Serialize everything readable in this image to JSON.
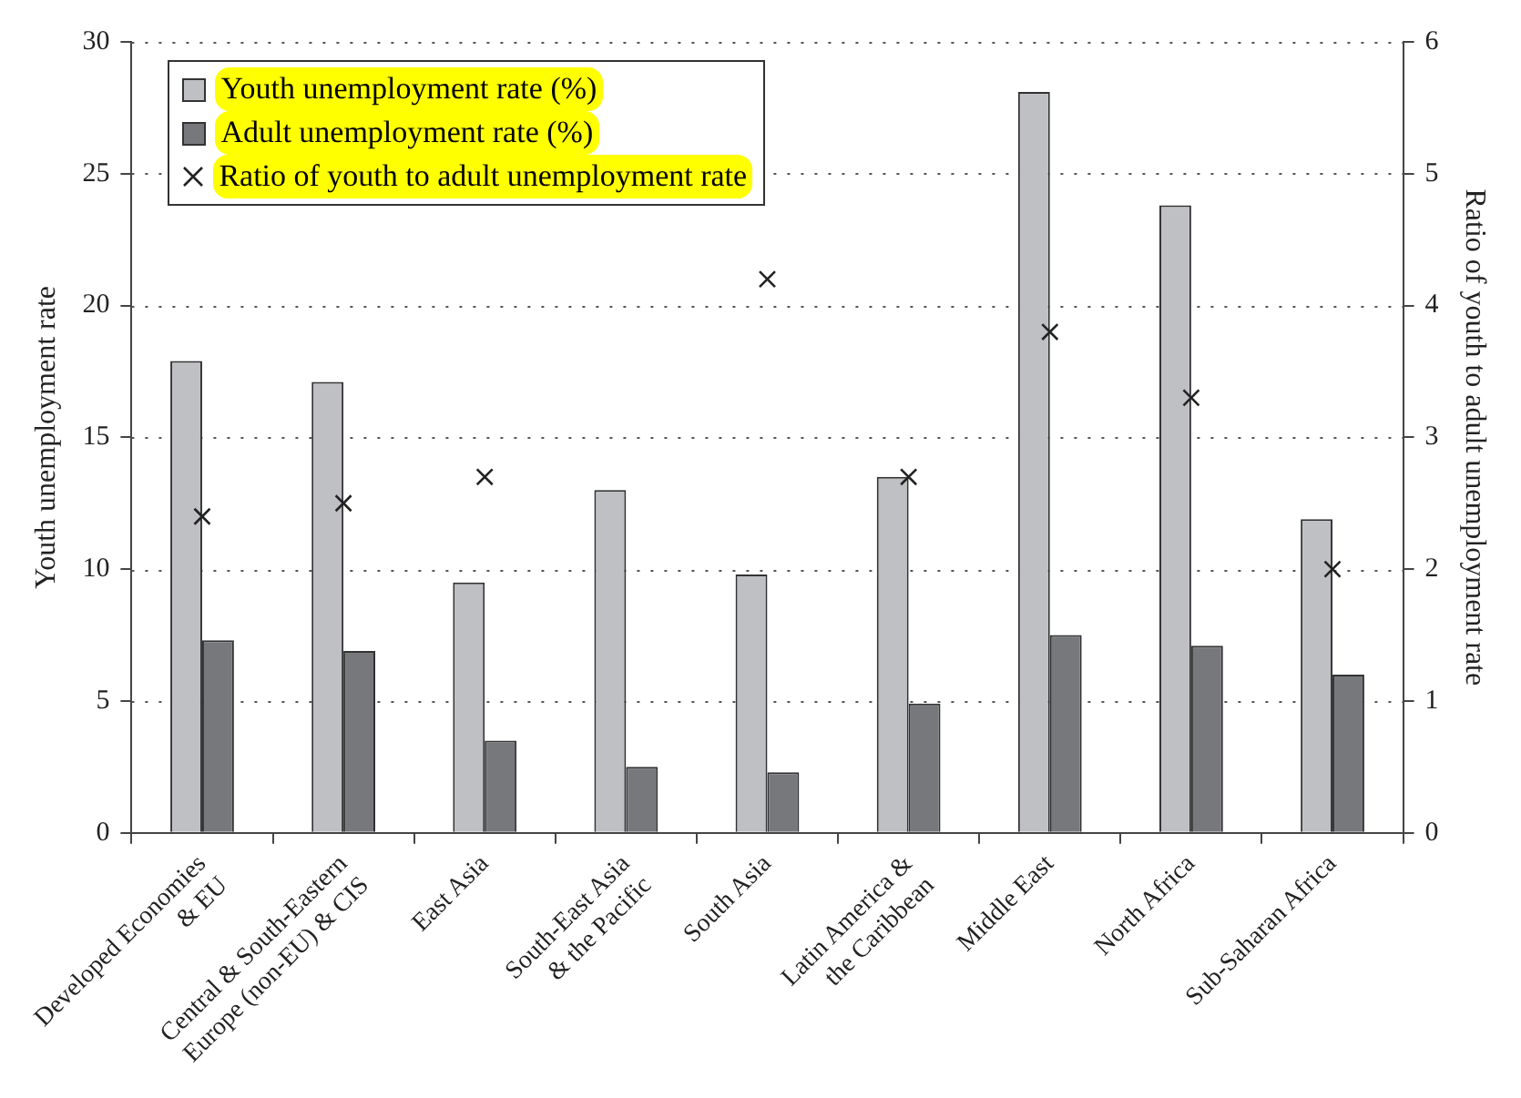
{
  "chart_data": {
    "type": "bar",
    "ylabel": "Youth unemployment rate",
    "y2label": "Ratio of youth to adult unemployment rate",
    "categories": [
      "Developed Economies & EU",
      "Central & South-Eastern Europe (non-EU) & CIS",
      "East Asia",
      "South-East Asia & the Pacific",
      "South Asia",
      "Latin America & the Caribbean",
      "Middle East",
      "North Africa",
      "Sub-Saharan Africa"
    ],
    "series": [
      {
        "name": "Youth unemployment rate (%)",
        "color": "#bfc0c4",
        "values": [
          17.9,
          17.1,
          9.5,
          13.0,
          9.8,
          13.5,
          28.1,
          23.8,
          11.9
        ]
      },
      {
        "name": "Adult unemployment rate (%)",
        "color": "#77787c",
        "values": [
          7.3,
          6.9,
          3.5,
          2.5,
          2.3,
          4.9,
          7.5,
          7.1,
          6.0
        ]
      },
      {
        "name": "Ratio of youth to adult unemployment rate",
        "type": "scatter",
        "axis": "y2",
        "color": "#222222",
        "marker": "cross",
        "values": [
          2.4,
          2.5,
          2.7,
          null,
          4.2,
          2.7,
          3.8,
          3.3,
          2.0
        ]
      }
    ],
    "ylim": [
      0,
      30
    ],
    "yticks": [
      0,
      5,
      10,
      15,
      20,
      25,
      30
    ],
    "y2lim": [
      0,
      6
    ],
    "y2ticks": [
      0,
      1,
      2,
      3,
      4,
      5,
      6
    ],
    "grid": "y",
    "legend": "top left"
  }
}
